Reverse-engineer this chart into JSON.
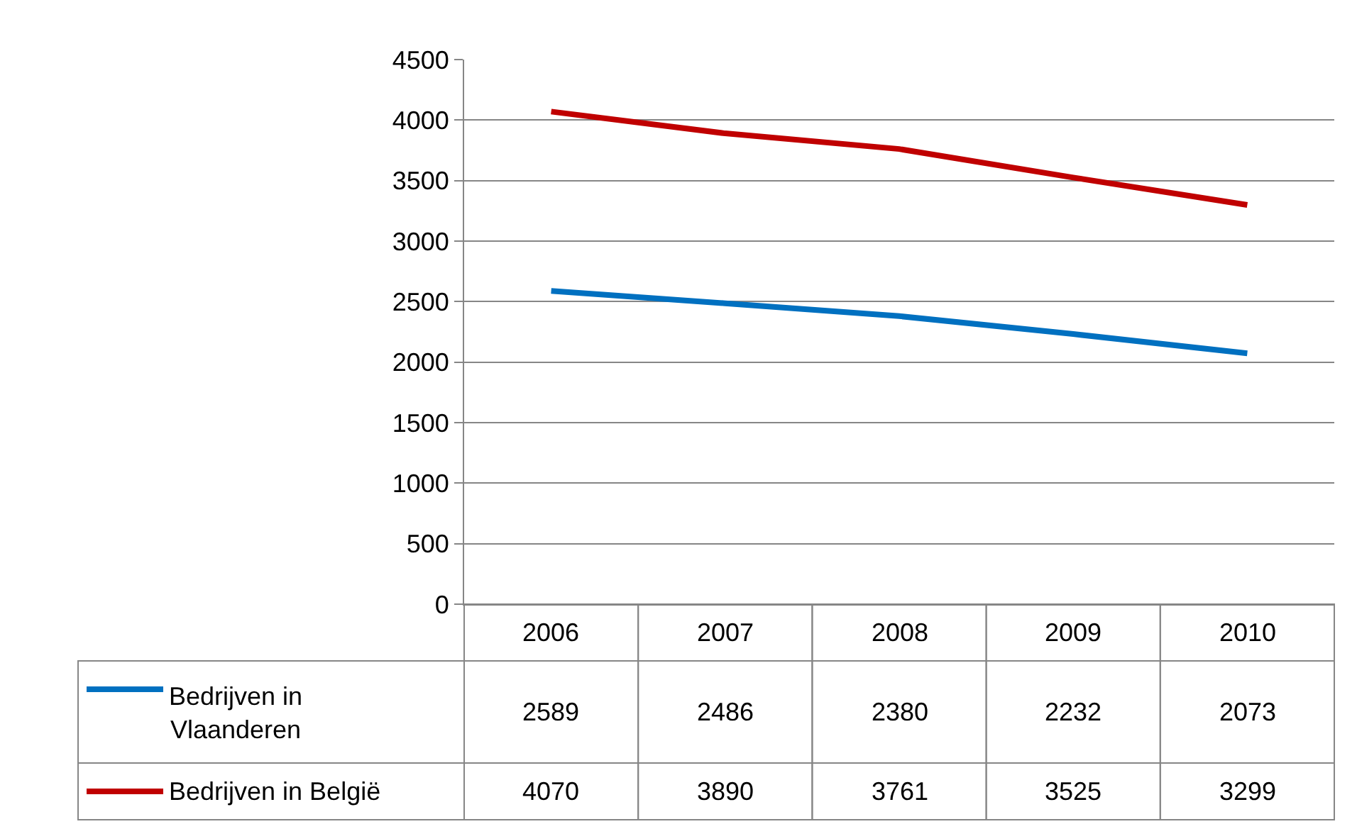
{
  "chart_data": {
    "type": "line",
    "categories": [
      "2006",
      "2007",
      "2008",
      "2009",
      "2010"
    ],
    "series": [
      {
        "name": "Bedrijven in Vlaanderen",
        "color": "#0070c0",
        "values": [
          2589,
          2486,
          2380,
          2232,
          2073
        ]
      },
      {
        "name": "Bedrijven in België",
        "color": "#c00000",
        "values": [
          4070,
          3890,
          3761,
          3525,
          3299
        ]
      }
    ],
    "ylim": [
      0,
      4500
    ],
    "yticks": [
      0,
      500,
      1000,
      1500,
      2000,
      2500,
      3000,
      3500,
      4000,
      4500
    ],
    "grid": "y",
    "data_labels": true,
    "line_style": "solid",
    "marker": "none",
    "legend": "bottom left"
  }
}
